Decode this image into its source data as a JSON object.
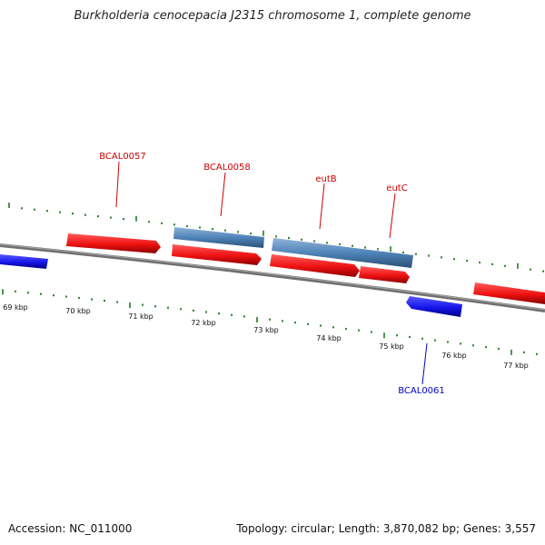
{
  "title": "Burkholderia cenocepacia J2315 chromosome 1, complete genome",
  "footer": {
    "accession": "Accession: NC_011000",
    "stats": "Topology: circular; Length: 3,870,082 bp; Genes: 3,557"
  },
  "colors": {
    "forward_gene": "#ee1111",
    "reverse_gene": "#1515e8",
    "rna_feature": "#4f84b8",
    "backbone": "#808080",
    "ticks": "#1f7d1f",
    "forward_label": "#cc0000",
    "reverse_label": "#0000cc"
  },
  "ticks": {
    "labels": [
      "69 kbp",
      "70 kbp",
      "71 kbp",
      "72 kbp",
      "73 kbp",
      "74 kbp",
      "75 kbp",
      "76 kbp",
      "77 kbp"
    ]
  },
  "gene_labels": [
    "BCAL0057",
    "BCAL0058",
    "eutB",
    "eutC",
    "BCAL0061"
  ]
}
